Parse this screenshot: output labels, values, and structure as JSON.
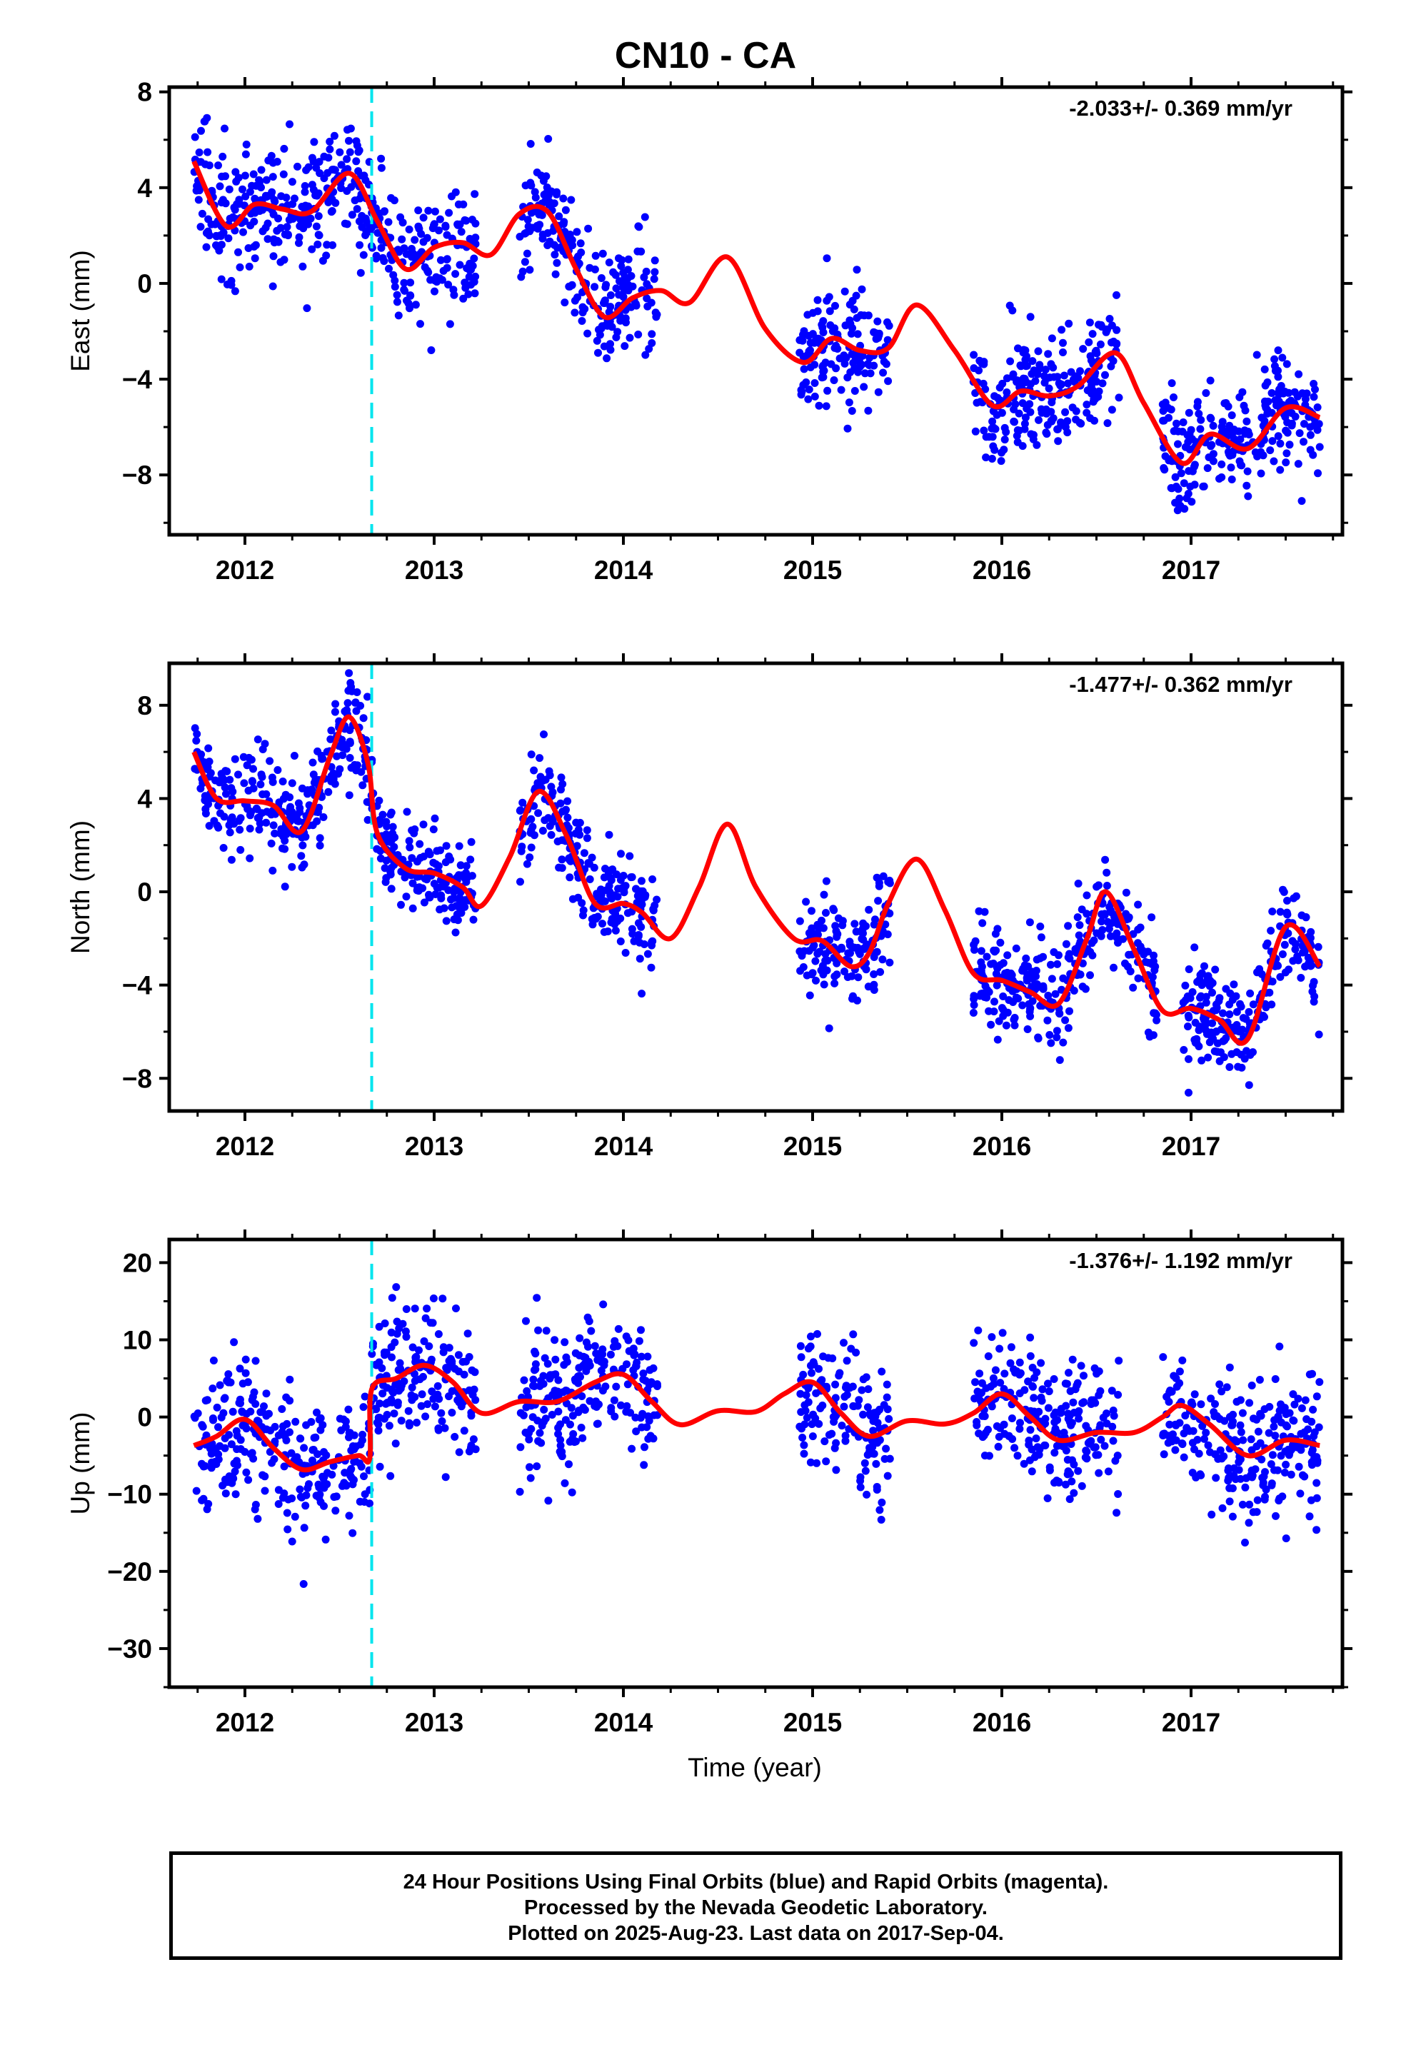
{
  "title": "CN10 - CA",
  "xlabel": "Time (year)",
  "footer": {
    "line1": "24 Hour Positions Using Final Orbits (blue) and Rapid Orbits (magenta).",
    "line2": "Processed by the Nevada Geodetic Laboratory.",
    "line3": "Plotted on 2025-Aug-23. Last data on 2017-Sep-04."
  },
  "colors": {
    "points": "#0000ff",
    "model": "#ff0000",
    "event_line": "#00e5ee"
  },
  "chart_data": [
    {
      "type": "scatter",
      "ylabel": "East (mm)",
      "rate_label": "-2.033+/- 0.369 mm/yr",
      "xlim": [
        2011.6,
        2017.8
      ],
      "ylim": [
        -10.5,
        8.2
      ],
      "xticks": [
        2012,
        2013,
        2014,
        2015,
        2016,
        2017
      ],
      "yticks": [
        -8,
        -4,
        0,
        4,
        8
      ],
      "event_line_x": 2012.67,
      "data_segments": [
        [
          2011.73,
          2013.22
        ],
        [
          2013.45,
          2014.18
        ],
        [
          2014.93,
          2015.41
        ],
        [
          2015.85,
          2016.62
        ],
        [
          2016.85,
          2017.68
        ]
      ],
      "model": {
        "x": [
          2011.73,
          2011.9,
          2012.05,
          2012.2,
          2012.35,
          2012.55,
          2012.7,
          2012.85,
          2013.0,
          2013.15,
          2013.3,
          2013.45,
          2013.6,
          2013.75,
          2013.9,
          2014.05,
          2014.2,
          2014.35,
          2014.55,
          2014.75,
          2014.95,
          2015.1,
          2015.25,
          2015.4,
          2015.55,
          2015.75,
          2015.95,
          2016.1,
          2016.25,
          2016.4,
          2016.6,
          2016.75,
          2016.95,
          2017.1,
          2017.3,
          2017.5,
          2017.68
        ],
        "y": [
          5.1,
          2.4,
          3.3,
          3.1,
          3.0,
          4.6,
          2.6,
          0.6,
          1.5,
          1.7,
          1.2,
          2.9,
          3.0,
          0.6,
          -1.4,
          -0.6,
          -0.3,
          -0.8,
          1.1,
          -1.9,
          -3.3,
          -2.3,
          -2.8,
          -2.7,
          -0.9,
          -2.8,
          -5.1,
          -4.5,
          -4.7,
          -4.3,
          -2.9,
          -5.0,
          -7.5,
          -6.3,
          -6.9,
          -5.2,
          -5.6
        ]
      },
      "scatter_sd": 1.2
    },
    {
      "type": "scatter",
      "ylabel": "North (mm)",
      "rate_label": "-1.477+/- 0.362 mm/yr",
      "xlim": [
        2011.6,
        2017.8
      ],
      "ylim": [
        -9.4,
        9.8
      ],
      "xticks": [
        2012,
        2013,
        2014,
        2015,
        2016,
        2017
      ],
      "yticks": [
        -8,
        -4,
        0,
        4,
        8
      ],
      "event_line_x": 2012.67,
      "data_segments": [
        [
          2011.73,
          2013.22
        ],
        [
          2013.45,
          2014.18
        ],
        [
          2014.93,
          2015.41
        ],
        [
          2015.85,
          2016.82
        ],
        [
          2016.95,
          2017.68
        ]
      ],
      "model": {
        "x": [
          2011.73,
          2011.85,
          2012.0,
          2012.15,
          2012.3,
          2012.45,
          2012.55,
          2012.65,
          2012.7,
          2012.85,
          2013.0,
          2013.15,
          2013.25,
          2013.4,
          2013.55,
          2013.7,
          2013.85,
          2014.0,
          2014.1,
          2014.25,
          2014.4,
          2014.55,
          2014.7,
          2014.9,
          2015.05,
          2015.2,
          2015.3,
          2015.4,
          2015.55,
          2015.7,
          2015.85,
          2016.0,
          2016.15,
          2016.3,
          2016.45,
          2016.55,
          2016.7,
          2016.85,
          2017.0,
          2017.15,
          2017.3,
          2017.5,
          2017.68
        ],
        "y": [
          6.0,
          4.0,
          3.9,
          3.7,
          2.6,
          5.8,
          7.5,
          5.5,
          2.5,
          1.0,
          0.8,
          0.2,
          -0.6,
          1.5,
          4.3,
          2.4,
          -0.5,
          -0.5,
          -0.9,
          -2.0,
          0.2,
          2.9,
          0.2,
          -2.0,
          -2.1,
          -3.2,
          -2.6,
          -0.5,
          1.4,
          -0.8,
          -3.5,
          -3.8,
          -4.3,
          -4.8,
          -2.0,
          0.0,
          -2.5,
          -5.1,
          -5.0,
          -5.5,
          -6.3,
          -1.5,
          -3.2
        ]
      },
      "scatter_sd": 1.1
    },
    {
      "type": "scatter",
      "ylabel": "Up (mm)",
      "rate_label": "-1.376+/- 1.192 mm/yr",
      "xlim": [
        2011.6,
        2017.8
      ],
      "ylim": [
        -35,
        23
      ],
      "xticks": [
        2012,
        2013,
        2014,
        2015,
        2016,
        2017
      ],
      "yticks": [
        -30,
        -20,
        -10,
        0,
        10,
        20
      ],
      "event_line_x": 2012.67,
      "data_segments": [
        [
          2011.73,
          2013.22
        ],
        [
          2013.45,
          2014.18
        ],
        [
          2014.93,
          2015.41
        ],
        [
          2015.85,
          2016.62
        ],
        [
          2016.85,
          2017.68
        ]
      ],
      "model": {
        "x": [
          2011.73,
          2011.85,
          2012.0,
          2012.15,
          2012.3,
          2012.45,
          2012.6,
          2012.66,
          2012.67,
          2012.8,
          2012.95,
          2013.1,
          2013.25,
          2013.45,
          2013.65,
          2013.85,
          2014.0,
          2014.15,
          2014.3,
          2014.5,
          2014.7,
          2014.85,
          2015.0,
          2015.15,
          2015.3,
          2015.5,
          2015.7,
          2015.85,
          2016.0,
          2016.15,
          2016.3,
          2016.5,
          2016.7,
          2016.85,
          2016.95,
          2017.1,
          2017.3,
          2017.5,
          2017.68
        ],
        "y": [
          -3.7,
          -2.5,
          -0.3,
          -4.0,
          -6.8,
          -5.8,
          -5.0,
          -5.3,
          3.6,
          5.0,
          6.7,
          4.5,
          0.5,
          2.0,
          2.0,
          4.5,
          5.5,
          2.0,
          -1.0,
          0.8,
          0.7,
          3.0,
          4.5,
          0.5,
          -2.5,
          -0.5,
          -0.9,
          0.5,
          3.0,
          0.0,
          -3.0,
          -2.0,
          -2.0,
          0.0,
          1.5,
          -1.0,
          -5.0,
          -3.0,
          -3.7
        ]
      },
      "scatter_sd": 4.5
    }
  ]
}
